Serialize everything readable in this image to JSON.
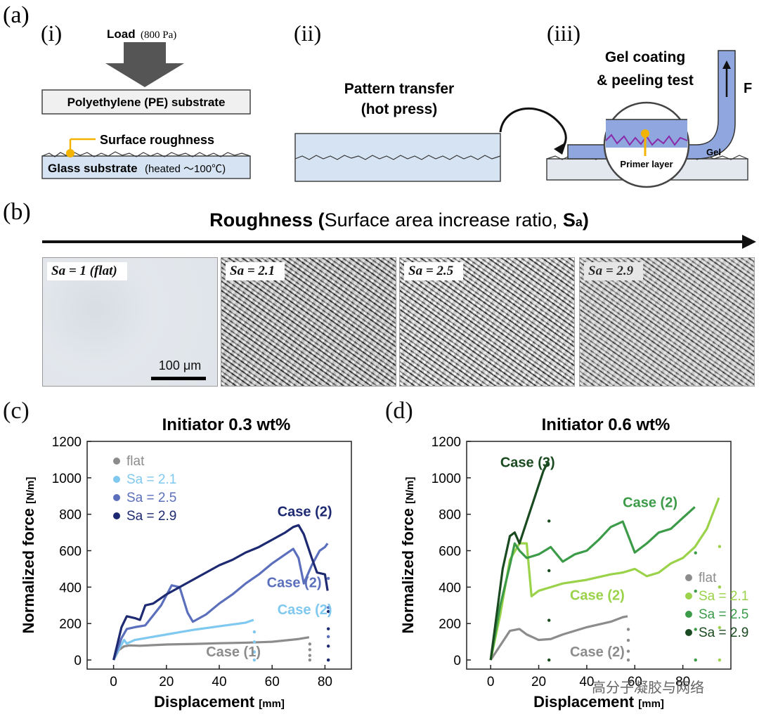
{
  "panel_a": {
    "label": "(a)",
    "i": {
      "label": "(i)",
      "load_word": "Load",
      "load_value": "(800 Pa)",
      "pe_substrate": "Polyethylene (PE) substrate",
      "surface_roughness": "Surface roughness",
      "glass_substrate": "Glass substrate",
      "glass_note": "(heated ～100℃)"
    },
    "ii": {
      "label": "(ii)",
      "title_line1": "Pattern transfer",
      "title_line2": "(hot press)"
    },
    "iii": {
      "label": "(iii)",
      "title_line1": "Gel coating",
      "title_line2": "& peeling test",
      "force": "F",
      "gel": "Gel",
      "primer": "Primer layer"
    }
  },
  "panel_b": {
    "label": "(b)",
    "title_bold": "Roughness (",
    "title_plain": "Surface area increase ratio, ",
    "title_sym": "S",
    "title_sub": "a",
    "title_end": ")",
    "images": [
      {
        "label": "Sa = 1 (flat)"
      },
      {
        "label": "Sa = 2.1"
      },
      {
        "label": "Sa = 2.5"
      },
      {
        "label": "Sa = 2.9"
      }
    ],
    "scale_bar": "100 μm"
  },
  "chart_data": [
    {
      "panel": "(c)",
      "type": "line",
      "title": "Initiator 0.3 wt%",
      "xlabel": "Displacement",
      "xunit": "[mm]",
      "ylabel": "Normalized force",
      "yunit": "[N/m]",
      "xlim": [
        -10,
        90
      ],
      "ylim": [
        -50,
        1200
      ],
      "xticks": [
        0,
        20,
        40,
        60,
        80
      ],
      "yticks": [
        0,
        200,
        400,
        600,
        800,
        1000,
        1200
      ],
      "legend_position": "top-left",
      "series": [
        {
          "name": "flat",
          "color": "#8c8c8c",
          "x": [
            0,
            2,
            4,
            6,
            10,
            20,
            30,
            40,
            50,
            60,
            70,
            74
          ],
          "y": [
            0,
            55,
            75,
            80,
            78,
            85,
            88,
            92,
            95,
            100,
            115,
            125
          ]
        },
        {
          "name": "Sa = 2.1",
          "color": "#7fc8ef",
          "x": [
            0,
            2,
            4,
            5,
            8,
            12,
            20,
            30,
            40,
            50,
            53
          ],
          "y": [
            0,
            60,
            110,
            90,
            110,
            120,
            140,
            165,
            185,
            205,
            220
          ]
        },
        {
          "name": "Sa = 2.5",
          "color": "#5b6fbc",
          "x": [
            0,
            3,
            5,
            8,
            12,
            18,
            22,
            25,
            28,
            30,
            35,
            40,
            45,
            50,
            55,
            60,
            65,
            68,
            70,
            72,
            75,
            78,
            80,
            81
          ],
          "y": [
            0,
            120,
            170,
            180,
            190,
            300,
            410,
            400,
            260,
            210,
            250,
            310,
            360,
            420,
            470,
            530,
            580,
            610,
            560,
            420,
            520,
            600,
            620,
            640
          ]
        },
        {
          "name": "Sa = 2.9",
          "color": "#1d2a72",
          "x": [
            0,
            3,
            5,
            8,
            10,
            12,
            15,
            20,
            25,
            30,
            35,
            40,
            45,
            50,
            55,
            60,
            65,
            68,
            70,
            72,
            75,
            77,
            80,
            81
          ],
          "y": [
            0,
            180,
            240,
            230,
            220,
            300,
            310,
            360,
            400,
            440,
            480,
            520,
            550,
            590,
            620,
            660,
            700,
            730,
            740,
            690,
            560,
            480,
            470,
            380
          ]
        }
      ],
      "annotations": [
        {
          "text": "Case (2)",
          "x": 62,
          "y": 790,
          "color": "#1d2a72"
        },
        {
          "text": "Case (2)",
          "x": 58,
          "y": 400,
          "color": "#5b6fbc"
        },
        {
          "text": "Case (2)",
          "x": 62,
          "y": 250,
          "color": "#7fc8ef"
        },
        {
          "text": "Case (1)",
          "x": 35,
          "y": 20,
          "color": "#8c8c8c"
        }
      ]
    },
    {
      "panel": "(d)",
      "type": "line",
      "title": "Initiator 0.6 wt%",
      "xlabel": "Displacement",
      "xunit": "[mm]",
      "ylabel": "Normalized force",
      "yunit": "[N/m]",
      "xlim": [
        -10,
        100
      ],
      "ylim": [
        -50,
        1200
      ],
      "xticks": [
        0,
        20,
        40,
        60,
        80
      ],
      "yticks": [
        0,
        200,
        400,
        600,
        800,
        1000,
        1200
      ],
      "legend_position": "bottom-right",
      "series": [
        {
          "name": "flat",
          "color": "#8c8c8c",
          "x": [
            0,
            5,
            8,
            12,
            15,
            20,
            25,
            30,
            40,
            50,
            55,
            57
          ],
          "y": [
            0,
            100,
            160,
            170,
            140,
            110,
            115,
            140,
            180,
            210,
            235,
            240
          ]
        },
        {
          "name": "Sa = 2.1",
          "color": "#9ad24a",
          "x": [
            0,
            4,
            8,
            12,
            15,
            17,
            20,
            25,
            30,
            40,
            50,
            55,
            60,
            65,
            70,
            75,
            80,
            85,
            90,
            95
          ],
          "y": [
            0,
            250,
            550,
            640,
            640,
            350,
            380,
            400,
            420,
            440,
            470,
            480,
            500,
            460,
            480,
            530,
            560,
            620,
            720,
            890
          ]
        },
        {
          "name": "Sa = 2.5",
          "color": "#3c9b48",
          "x": [
            0,
            4,
            8,
            10,
            12,
            15,
            20,
            25,
            30,
            35,
            40,
            45,
            50,
            55,
            60,
            65,
            70,
            75,
            80,
            85
          ],
          "y": [
            0,
            300,
            520,
            640,
            600,
            560,
            580,
            620,
            540,
            580,
            600,
            660,
            730,
            760,
            590,
            640,
            700,
            720,
            780,
            840
          ]
        },
        {
          "name": "Sa = 2.9",
          "color": "#1a4a1f",
          "x": [
            0,
            3,
            5,
            8,
            10,
            12,
            14,
            16,
            18,
            20,
            22,
            24
          ],
          "y": [
            0,
            300,
            500,
            680,
            700,
            640,
            720,
            800,
            880,
            960,
            1040,
            1090
          ]
        }
      ],
      "annotations": [
        {
          "text": "Case (3)",
          "x": 4,
          "y": 1060,
          "color": "#1a4a1f"
        },
        {
          "text": "Case (2)",
          "x": 55,
          "y": 840,
          "color": "#3c9b48"
        },
        {
          "text": "Case (2)",
          "x": 33,
          "y": 330,
          "color": "#9ad24a"
        },
        {
          "text": "Case (2)",
          "x": 33,
          "y": 20,
          "color": "#8c8c8c"
        }
      ]
    }
  ],
  "panel_c_label": "(c)",
  "panel_d_label": "(d)",
  "watermark": "高分子凝胶与网络"
}
